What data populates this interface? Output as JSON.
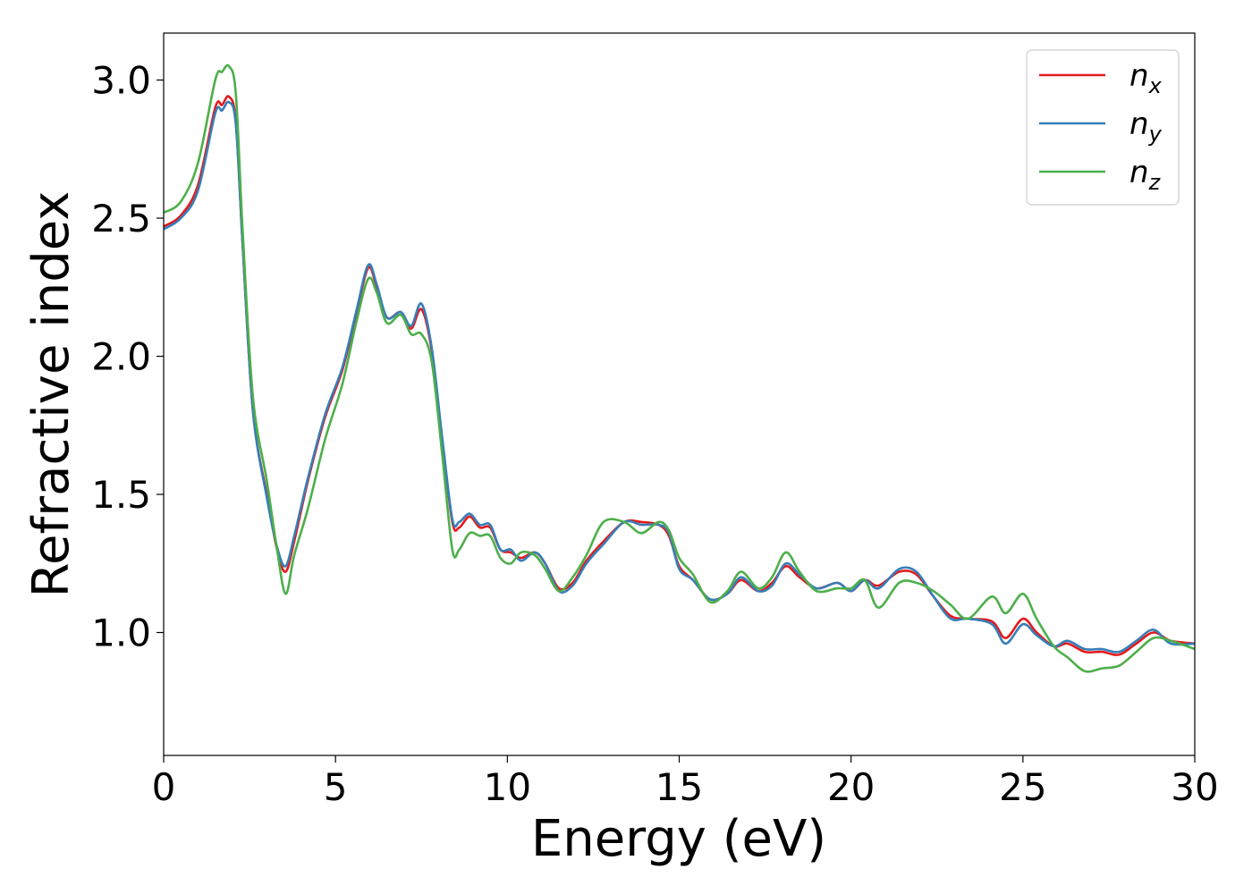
{
  "chart_data": {
    "type": "line",
    "title": "",
    "xlabel": "Energy (eV)",
    "ylabel": "Refractive index",
    "xlim": [
      0,
      30
    ],
    "ylim": [
      0.555,
      3.17
    ],
    "xticks": [
      0,
      5,
      10,
      15,
      20,
      25,
      30
    ],
    "xtick_labels": [
      "0",
      "5",
      "10",
      "15",
      "20",
      "25",
      "30"
    ],
    "yticks": [
      1.0,
      1.5,
      2.0,
      2.5,
      3.0
    ],
    "ytick_labels": [
      "1.0",
      "1.5",
      "2.0",
      "2.5",
      "3.0"
    ],
    "grid": false,
    "legend_position": "top-right",
    "series": [
      {
        "name": "n",
        "subscript": "x",
        "color": "#e41a1c",
        "points": [
          [
            0,
            2.47
          ],
          [
            0.5,
            2.51
          ],
          [
            1.0,
            2.62
          ],
          [
            1.5,
            2.9
          ],
          [
            1.7,
            2.91
          ],
          [
            1.9,
            2.94
          ],
          [
            2.1,
            2.85
          ],
          [
            2.3,
            2.4
          ],
          [
            2.6,
            1.8
          ],
          [
            3.0,
            1.5
          ],
          [
            3.3,
            1.3
          ],
          [
            3.55,
            1.22
          ],
          [
            3.8,
            1.33
          ],
          [
            4.2,
            1.55
          ],
          [
            4.7,
            1.78
          ],
          [
            5.2,
            1.95
          ],
          [
            5.6,
            2.15
          ],
          [
            5.95,
            2.32
          ],
          [
            6.2,
            2.25
          ],
          [
            6.5,
            2.14
          ],
          [
            6.9,
            2.16
          ],
          [
            7.2,
            2.1
          ],
          [
            7.5,
            2.17
          ],
          [
            7.8,
            2.02
          ],
          [
            8.1,
            1.7
          ],
          [
            8.4,
            1.4
          ],
          [
            8.6,
            1.38
          ],
          [
            8.9,
            1.42
          ],
          [
            9.2,
            1.38
          ],
          [
            9.5,
            1.38
          ],
          [
            9.8,
            1.3
          ],
          [
            10.1,
            1.29
          ],
          [
            10.4,
            1.27
          ],
          [
            10.8,
            1.29
          ],
          [
            11.1,
            1.25
          ],
          [
            11.5,
            1.16
          ],
          [
            11.9,
            1.18
          ],
          [
            12.3,
            1.26
          ],
          [
            12.8,
            1.33
          ],
          [
            13.4,
            1.4
          ],
          [
            13.9,
            1.4
          ],
          [
            14.4,
            1.39
          ],
          [
            14.7,
            1.35
          ],
          [
            15.0,
            1.24
          ],
          [
            15.4,
            1.19
          ],
          [
            15.9,
            1.12
          ],
          [
            16.4,
            1.14
          ],
          [
            16.8,
            1.19
          ],
          [
            17.3,
            1.15
          ],
          [
            17.7,
            1.18
          ],
          [
            18.1,
            1.24
          ],
          [
            18.5,
            1.2
          ],
          [
            19.0,
            1.16
          ],
          [
            19.6,
            1.18
          ],
          [
            20.0,
            1.15
          ],
          [
            20.4,
            1.19
          ],
          [
            20.8,
            1.17
          ],
          [
            21.4,
            1.22
          ],
          [
            21.9,
            1.21
          ],
          [
            22.4,
            1.13
          ],
          [
            22.9,
            1.06
          ],
          [
            23.4,
            1.05
          ],
          [
            24.1,
            1.04
          ],
          [
            24.5,
            0.98
          ],
          [
            25.0,
            1.05
          ],
          [
            25.4,
            1.0
          ],
          [
            25.9,
            0.95
          ],
          [
            26.3,
            0.96
          ],
          [
            26.8,
            0.93
          ],
          [
            27.3,
            0.93
          ],
          [
            27.8,
            0.92
          ],
          [
            28.3,
            0.96
          ],
          [
            28.8,
            1.0
          ],
          [
            29.3,
            0.97
          ],
          [
            30,
            0.96
          ]
        ]
      },
      {
        "name": "n",
        "subscript": "y",
        "color": "#377eb8",
        "points": [
          [
            0,
            2.46
          ],
          [
            0.5,
            2.5
          ],
          [
            1.0,
            2.6
          ],
          [
            1.5,
            2.88
          ],
          [
            1.7,
            2.89
          ],
          [
            1.9,
            2.92
          ],
          [
            2.1,
            2.84
          ],
          [
            2.3,
            2.4
          ],
          [
            2.6,
            1.8
          ],
          [
            3.0,
            1.49
          ],
          [
            3.3,
            1.31
          ],
          [
            3.55,
            1.24
          ],
          [
            3.8,
            1.35
          ],
          [
            4.2,
            1.56
          ],
          [
            4.7,
            1.79
          ],
          [
            5.2,
            1.96
          ],
          [
            5.6,
            2.16
          ],
          [
            5.95,
            2.33
          ],
          [
            6.2,
            2.26
          ],
          [
            6.5,
            2.14
          ],
          [
            6.9,
            2.16
          ],
          [
            7.2,
            2.11
          ],
          [
            7.5,
            2.19
          ],
          [
            7.8,
            2.03
          ],
          [
            8.1,
            1.71
          ],
          [
            8.4,
            1.41
          ],
          [
            8.6,
            1.4
          ],
          [
            8.9,
            1.43
          ],
          [
            9.2,
            1.39
          ],
          [
            9.5,
            1.39
          ],
          [
            9.8,
            1.3
          ],
          [
            10.1,
            1.3
          ],
          [
            10.4,
            1.26
          ],
          [
            10.8,
            1.29
          ],
          [
            11.1,
            1.25
          ],
          [
            11.5,
            1.15
          ],
          [
            11.9,
            1.17
          ],
          [
            12.3,
            1.25
          ],
          [
            12.8,
            1.32
          ],
          [
            13.4,
            1.4
          ],
          [
            13.9,
            1.39
          ],
          [
            14.4,
            1.39
          ],
          [
            14.7,
            1.36
          ],
          [
            15.0,
            1.23
          ],
          [
            15.4,
            1.19
          ],
          [
            15.9,
            1.12
          ],
          [
            16.4,
            1.14
          ],
          [
            16.8,
            1.2
          ],
          [
            17.3,
            1.15
          ],
          [
            17.7,
            1.17
          ],
          [
            18.1,
            1.25
          ],
          [
            18.5,
            1.21
          ],
          [
            19.0,
            1.16
          ],
          [
            19.6,
            1.18
          ],
          [
            20.0,
            1.15
          ],
          [
            20.4,
            1.19
          ],
          [
            20.8,
            1.16
          ],
          [
            21.4,
            1.23
          ],
          [
            21.9,
            1.22
          ],
          [
            22.4,
            1.13
          ],
          [
            22.9,
            1.05
          ],
          [
            23.4,
            1.05
          ],
          [
            24.1,
            1.03
          ],
          [
            24.5,
            0.96
          ],
          [
            25.0,
            1.03
          ],
          [
            25.4,
            0.99
          ],
          [
            25.9,
            0.95
          ],
          [
            26.3,
            0.97
          ],
          [
            26.8,
            0.94
          ],
          [
            27.3,
            0.94
          ],
          [
            27.8,
            0.93
          ],
          [
            28.3,
            0.97
          ],
          [
            28.8,
            1.01
          ],
          [
            29.3,
            0.96
          ],
          [
            30,
            0.96
          ]
        ]
      },
      {
        "name": "n",
        "subscript": "z",
        "color": "#4daf4a",
        "points": [
          [
            0,
            2.52
          ],
          [
            0.5,
            2.56
          ],
          [
            1.0,
            2.7
          ],
          [
            1.5,
            3.0
          ],
          [
            1.7,
            3.03
          ],
          [
            1.9,
            3.05
          ],
          [
            2.1,
            2.95
          ],
          [
            2.3,
            2.45
          ],
          [
            2.6,
            1.85
          ],
          [
            3.0,
            1.55
          ],
          [
            3.3,
            1.3
          ],
          [
            3.55,
            1.14
          ],
          [
            3.8,
            1.28
          ],
          [
            4.2,
            1.45
          ],
          [
            4.7,
            1.7
          ],
          [
            5.2,
            1.9
          ],
          [
            5.6,
            2.12
          ],
          [
            5.95,
            2.28
          ],
          [
            6.2,
            2.23
          ],
          [
            6.5,
            2.12
          ],
          [
            6.9,
            2.15
          ],
          [
            7.2,
            2.08
          ],
          [
            7.5,
            2.08
          ],
          [
            7.8,
            1.98
          ],
          [
            8.1,
            1.65
          ],
          [
            8.4,
            1.3
          ],
          [
            8.6,
            1.3
          ],
          [
            8.9,
            1.36
          ],
          [
            9.2,
            1.35
          ],
          [
            9.5,
            1.35
          ],
          [
            9.8,
            1.27
          ],
          [
            10.1,
            1.25
          ],
          [
            10.4,
            1.29
          ],
          [
            10.8,
            1.28
          ],
          [
            11.1,
            1.23
          ],
          [
            11.5,
            1.15
          ],
          [
            11.9,
            1.2
          ],
          [
            12.3,
            1.28
          ],
          [
            12.8,
            1.4
          ],
          [
            13.4,
            1.4
          ],
          [
            13.9,
            1.36
          ],
          [
            14.4,
            1.4
          ],
          [
            14.7,
            1.37
          ],
          [
            15.0,
            1.27
          ],
          [
            15.4,
            1.21
          ],
          [
            15.9,
            1.11
          ],
          [
            16.4,
            1.15
          ],
          [
            16.8,
            1.22
          ],
          [
            17.3,
            1.16
          ],
          [
            17.7,
            1.2
          ],
          [
            18.1,
            1.29
          ],
          [
            18.5,
            1.22
          ],
          [
            19.0,
            1.15
          ],
          [
            19.6,
            1.16
          ],
          [
            20.0,
            1.16
          ],
          [
            20.4,
            1.19
          ],
          [
            20.8,
            1.09
          ],
          [
            21.4,
            1.18
          ],
          [
            21.9,
            1.18
          ],
          [
            22.4,
            1.15
          ],
          [
            22.9,
            1.1
          ],
          [
            23.4,
            1.05
          ],
          [
            24.1,
            1.13
          ],
          [
            24.5,
            1.07
          ],
          [
            25.0,
            1.14
          ],
          [
            25.4,
            1.05
          ],
          [
            25.9,
            0.95
          ],
          [
            26.3,
            0.91
          ],
          [
            26.8,
            0.86
          ],
          [
            27.3,
            0.87
          ],
          [
            27.8,
            0.88
          ],
          [
            28.3,
            0.93
          ],
          [
            28.8,
            0.98
          ],
          [
            29.3,
            0.97
          ],
          [
            30,
            0.94
          ]
        ]
      }
    ]
  }
}
